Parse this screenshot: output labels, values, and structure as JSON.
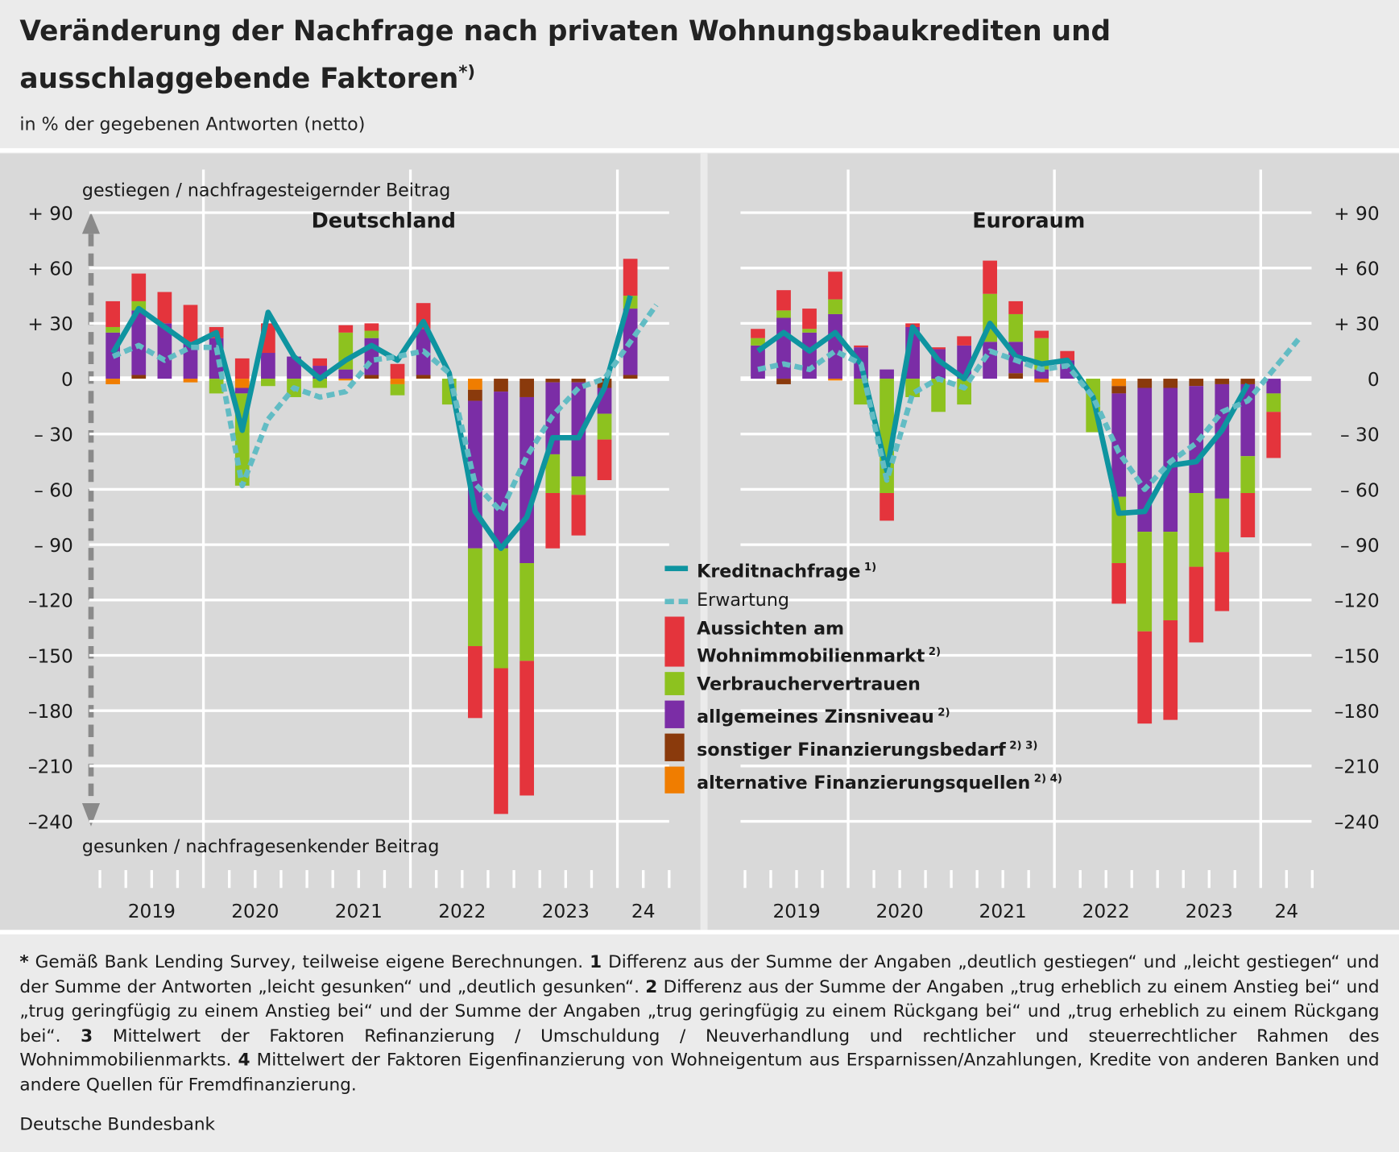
{
  "header": {
    "title": "Veränderung der Nachfrage nach privaten Wohnungsbaukrediten und ausschlaggebende Faktoren",
    "title_note": "*)",
    "subtitle": "in % der gegebenen Antworten (netto)"
  },
  "chart_data": [
    {
      "type": "bar",
      "title": "Deutschland",
      "ylabel_top": "gestiegen / nachfragesteigernder Beitrag",
      "ylabel_bottom": "gesunken / nachfragesenkender Beitrag",
      "categories": [
        null,
        null,
        null,
        null,
        null,
        null,
        null,
        null,
        null,
        null,
        null,
        null,
        null,
        null,
        null,
        null,
        null,
        null,
        null,
        null,
        null,
        null
      ],
      "x_groups": [
        "2019",
        "2020",
        "2021",
        "2022",
        "2023",
        "24"
      ],
      "ylim": [
        -250,
        110
      ],
      "yticks": [
        {
          "value": 90,
          "label": "+ 90"
        },
        {
          "value": 60,
          "label": "+ 60"
        },
        {
          "value": 30,
          "label": "+ 30"
        },
        0,
        {
          "value": -30,
          "label": "– 30"
        },
        {
          "value": -60,
          "label": "– 60"
        },
        {
          "value": -90,
          "label": "– 90"
        },
        {
          "value": -120,
          "label": "–120"
        },
        {
          "value": -150,
          "label": "–150"
        },
        {
          "value": -180,
          "label": "–180"
        },
        {
          "value": -210,
          "label": "–210"
        },
        {
          "value": -240,
          "label": "–240"
        }
      ],
      "grid": true,
      "series": [
        {
          "type": "line",
          "color": "#0e94a0",
          "values": [
            14,
            38,
            28,
            18,
            25,
            -28,
            36,
            12,
            0,
            10,
            18,
            10,
            31,
            3,
            -72,
            -92,
            -75,
            -32,
            -32,
            -5,
            45,
            null
          ]
        },
        {
          "type": "line",
          "dashed": true,
          "color": "#62bcc4",
          "values": [
            12,
            18,
            10,
            17,
            17,
            -58,
            -22,
            -5,
            -10,
            -7,
            10,
            12,
            15,
            3,
            -57,
            -72,
            -42,
            -20,
            -5,
            0,
            20,
            40
          ]
        },
        {
          "type": "bar",
          "color": "#e4343c",
          "values": [
            14,
            15,
            17,
            20,
            6,
            11,
            16,
            0,
            4,
            4,
            4,
            8,
            14,
            0,
            -39,
            -79,
            -73,
            -30,
            -22,
            -22,
            20,
            null
          ]
        },
        {
          "type": "bar",
          "color": "#8dc21f",
          "values": [
            3,
            5,
            0,
            0,
            -8,
            -50,
            -4,
            -10,
            -5,
            20,
            4,
            -6,
            0,
            -14,
            -53,
            -65,
            -53,
            -21,
            -10,
            -14,
            7,
            null
          ]
        },
        {
          "type": "bar",
          "color": "#7b2da6",
          "values": [
            25,
            35,
            30,
            20,
            22,
            -3,
            14,
            12,
            7,
            5,
            20,
            0,
            25,
            0,
            -80,
            -85,
            -90,
            -39,
            -51,
            -14,
            36,
            null
          ]
        },
        {
          "type": "bar",
          "color": "#8a3a0c",
          "values": [
            0,
            2,
            0,
            0,
            0,
            0,
            0,
            0,
            0,
            0,
            2,
            0,
            2,
            0,
            -6,
            -7,
            -10,
            -2,
            -2,
            -5,
            2,
            null
          ]
        },
        {
          "type": "bar",
          "color": "#f07d00",
          "values": [
            -3,
            0,
            0,
            -2,
            0,
            -5,
            0,
            0,
            0,
            -1,
            0,
            -3,
            0,
            0,
            -6,
            0,
            0,
            0,
            0,
            0,
            0,
            null
          ]
        }
      ]
    },
    {
      "type": "bar",
      "title": "Euroraum",
      "categories": [
        null,
        null,
        null,
        null,
        null,
        null,
        null,
        null,
        null,
        null,
        null,
        null,
        null,
        null,
        null,
        null,
        null,
        null,
        null,
        null,
        null,
        null
      ],
      "x_groups": [
        "2019",
        "2020",
        "2021",
        "2022",
        "2023",
        "24"
      ],
      "ylim": [
        -250,
        110
      ],
      "yticks": [
        {
          "value": 90,
          "label": "+ 90"
        },
        {
          "value": 60,
          "label": "+ 60"
        },
        {
          "value": 30,
          "label": "+ 30"
        },
        0,
        {
          "value": -30,
          "label": "– 30"
        },
        {
          "value": -60,
          "label": "– 60"
        },
        {
          "value": -90,
          "label": "– 90"
        },
        {
          "value": -120,
          "label": "–120"
        },
        {
          "value": -150,
          "label": "–150"
        },
        {
          "value": -180,
          "label": "–180"
        },
        {
          "value": -210,
          "label": "–210"
        },
        {
          "value": -240,
          "label": "–240"
        }
      ],
      "grid": true,
      "series": [
        {
          "type": "line",
          "name": "Kreditnachfrage",
          "note": "1)",
          "color": "#0e94a0",
          "values": [
            15,
            25,
            15,
            25,
            8,
            -50,
            28,
            10,
            0,
            30,
            12,
            8,
            10,
            -10,
            -73,
            -72,
            -47,
            -45,
            -28,
            -3,
            null,
            null
          ]
        },
        {
          "type": "line",
          "dashed": true,
          "name": "Erwartung",
          "color": "#62bcc4",
          "values": [
            5,
            8,
            5,
            15,
            8,
            -55,
            -8,
            0,
            -5,
            15,
            10,
            5,
            7,
            -10,
            -40,
            -60,
            -45,
            -35,
            -18,
            -12,
            5,
            22
          ]
        },
        {
          "type": "bar",
          "name": "Aussichten am Wohnimmobilienmarkt",
          "note": "2)",
          "color": "#e4343c",
          "values": [
            5,
            11,
            11,
            15,
            1,
            -15,
            2,
            1,
            5,
            18,
            7,
            4,
            5,
            0,
            -22,
            -50,
            -54,
            -41,
            -32,
            -24,
            -25,
            null
          ]
        },
        {
          "type": "bar",
          "name": "Verbrauchervertrauen",
          "color": "#8dc21f",
          "values": [
            4,
            4,
            2,
            8,
            -14,
            -62,
            -10,
            -18,
            -14,
            26,
            15,
            17,
            0,
            -29,
            -36,
            -54,
            -48,
            -40,
            -29,
            -20,
            -10,
            null
          ]
        },
        {
          "type": "bar",
          "name": "allgemeines Zinsniveau",
          "note": "2)",
          "color": "#7b2da6",
          "values": [
            18,
            33,
            25,
            35,
            17,
            5,
            28,
            16,
            18,
            20,
            17,
            5,
            10,
            0,
            -56,
            -78,
            -78,
            -58,
            -62,
            -39,
            -8,
            null
          ]
        },
        {
          "type": "bar",
          "name": "sonstiger Finanzierungsbedarf",
          "note": "2) 3)",
          "color": "#8a3a0c",
          "values": [
            0,
            -3,
            0,
            0,
            0,
            0,
            0,
            0,
            0,
            0,
            3,
            0,
            0,
            0,
            -4,
            -5,
            -5,
            -4,
            -3,
            -3,
            0,
            null
          ]
        },
        {
          "type": "bar",
          "name": "alternative Finanzierungsquellen",
          "note": "2) 4)",
          "color": "#f07d00",
          "values": [
            0,
            0,
            0,
            -1,
            0,
            0,
            0,
            0,
            0,
            0,
            0,
            -2,
            0,
            0,
            -4,
            0,
            0,
            0,
            0,
            0,
            0,
            null
          ]
        }
      ]
    }
  ],
  "footnotes": [
    {
      "mark": "*",
      "text": "Gemäß Bank Lending Survey, teilweise eigene Berechnungen."
    },
    {
      "mark": "1",
      "text": "Differenz aus der Summe der Angaben „deutlich gestiegen“ und „leicht gestiegen“ und der Summe der Antworten „leicht gesunken“ und „deutlich gesunken“."
    },
    {
      "mark": "2",
      "text": "Differenz aus der Summe der Angaben „trug erheblich zu einem Anstieg bei“ und „trug geringfügig zu einem Anstieg bei“ und der Summe der Angaben „trug geringfügig zu einem Rückgang bei“ und „trug erheblich zu einem Rückgang bei“."
    },
    {
      "mark": "3",
      "text": "Mittelwert der Faktoren Refinanzierung / Umschuldung / Neuverhandlung und rechtlicher und steuerrechtlicher Rahmen des Wohnimmobilienmarkts."
    },
    {
      "mark": "4",
      "text": "Mittelwert der Faktoren Eigenfinanzierung von Wohneigentum aus Ersparnissen/Anzahlungen, Kredite von anderen Banken und andere Quellen für Fremdfinanzierung."
    }
  ],
  "source": "Deutsche Bundesbank"
}
